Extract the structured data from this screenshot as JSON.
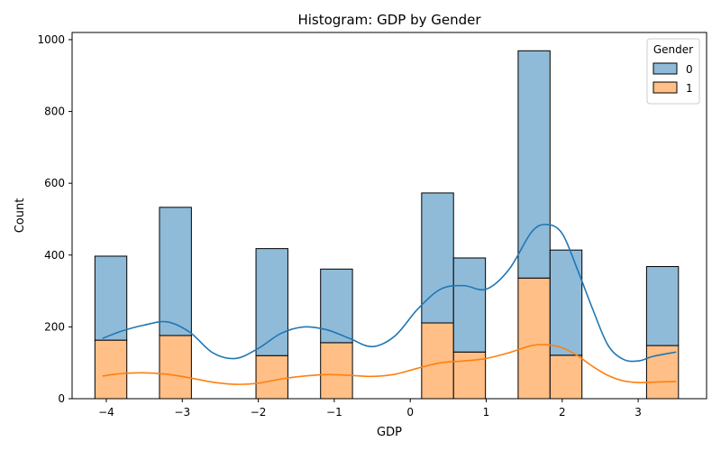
{
  "chart_data": {
    "type": "bar",
    "title": "Histogram: GDP by Gender",
    "xlabel": "GDP",
    "ylabel": "Count",
    "xlim": [
      -4.45,
      3.9
    ],
    "ylim": [
      0,
      1020
    ],
    "xticks": [
      -4,
      -3,
      -2,
      -1,
      0,
      1,
      2,
      3
    ],
    "yticks": [
      0,
      200,
      400,
      600,
      800,
      1000
    ],
    "stacked": true,
    "bins": [
      {
        "x0": -4.15,
        "x1": -3.73,
        "values": [
          234,
          163
        ]
      },
      {
        "x0": -3.3,
        "x1": -2.88,
        "values": [
          357,
          176
        ]
      },
      {
        "x0": -2.03,
        "x1": -1.61,
        "values": [
          298,
          120
        ]
      },
      {
        "x0": -1.18,
        "x1": -0.76,
        "values": [
          205,
          156
        ]
      },
      {
        "x0": 0.15,
        "x1": 0.57,
        "values": [
          362,
          211
        ]
      },
      {
        "x0": 0.57,
        "x1": 0.99,
        "values": [
          262,
          130
        ]
      },
      {
        "x0": 1.42,
        "x1": 1.84,
        "values": [
          633,
          336
        ]
      },
      {
        "x0": 1.84,
        "x1": 2.26,
        "values": [
          293,
          121
        ]
      },
      {
        "x0": 3.11,
        "x1": 3.53,
        "values": [
          220,
          148
        ]
      }
    ],
    "series": [
      {
        "name": "0",
        "color": "#1f77b4",
        "fill": "#8fbbd9",
        "kde_x": [
          -4.05,
          -3.8,
          -3.5,
          -3.2,
          -2.9,
          -2.6,
          -2.3,
          -2.0,
          -1.7,
          -1.4,
          -1.1,
          -0.8,
          -0.5,
          -0.2,
          0.1,
          0.4,
          0.7,
          1.0,
          1.3,
          1.6,
          1.8,
          2.0,
          2.2,
          2.4,
          2.6,
          2.8,
          3.0,
          3.2,
          3.5
        ],
        "kde_y": [
          168,
          188,
          205,
          214,
          185,
          128,
          112,
          140,
          182,
          200,
          192,
          168,
          145,
          175,
          250,
          305,
          315,
          305,
          360,
          465,
          485,
          460,
          360,
          250,
          150,
          110,
          105,
          118,
          130
        ]
      },
      {
        "name": "1",
        "color": "#ff7f0e",
        "fill": "#ffbf86",
        "kde_x": [
          -4.05,
          -3.8,
          -3.5,
          -3.2,
          -2.9,
          -2.6,
          -2.3,
          -2.0,
          -1.7,
          -1.4,
          -1.1,
          -0.8,
          -0.5,
          -0.2,
          0.1,
          0.4,
          0.7,
          1.0,
          1.3,
          1.6,
          1.8,
          2.0,
          2.2,
          2.4,
          2.6,
          2.8,
          3.0,
          3.2,
          3.5
        ],
        "kde_y": [
          63,
          70,
          72,
          68,
          58,
          46,
          40,
          43,
          55,
          63,
          67,
          65,
          62,
          68,
          85,
          100,
          105,
          112,
          128,
          148,
          150,
          142,
          120,
          90,
          65,
          50,
          45,
          46,
          48
        ]
      }
    ],
    "legend": {
      "title": "Gender",
      "position": "top-right"
    },
    "grid": false
  }
}
